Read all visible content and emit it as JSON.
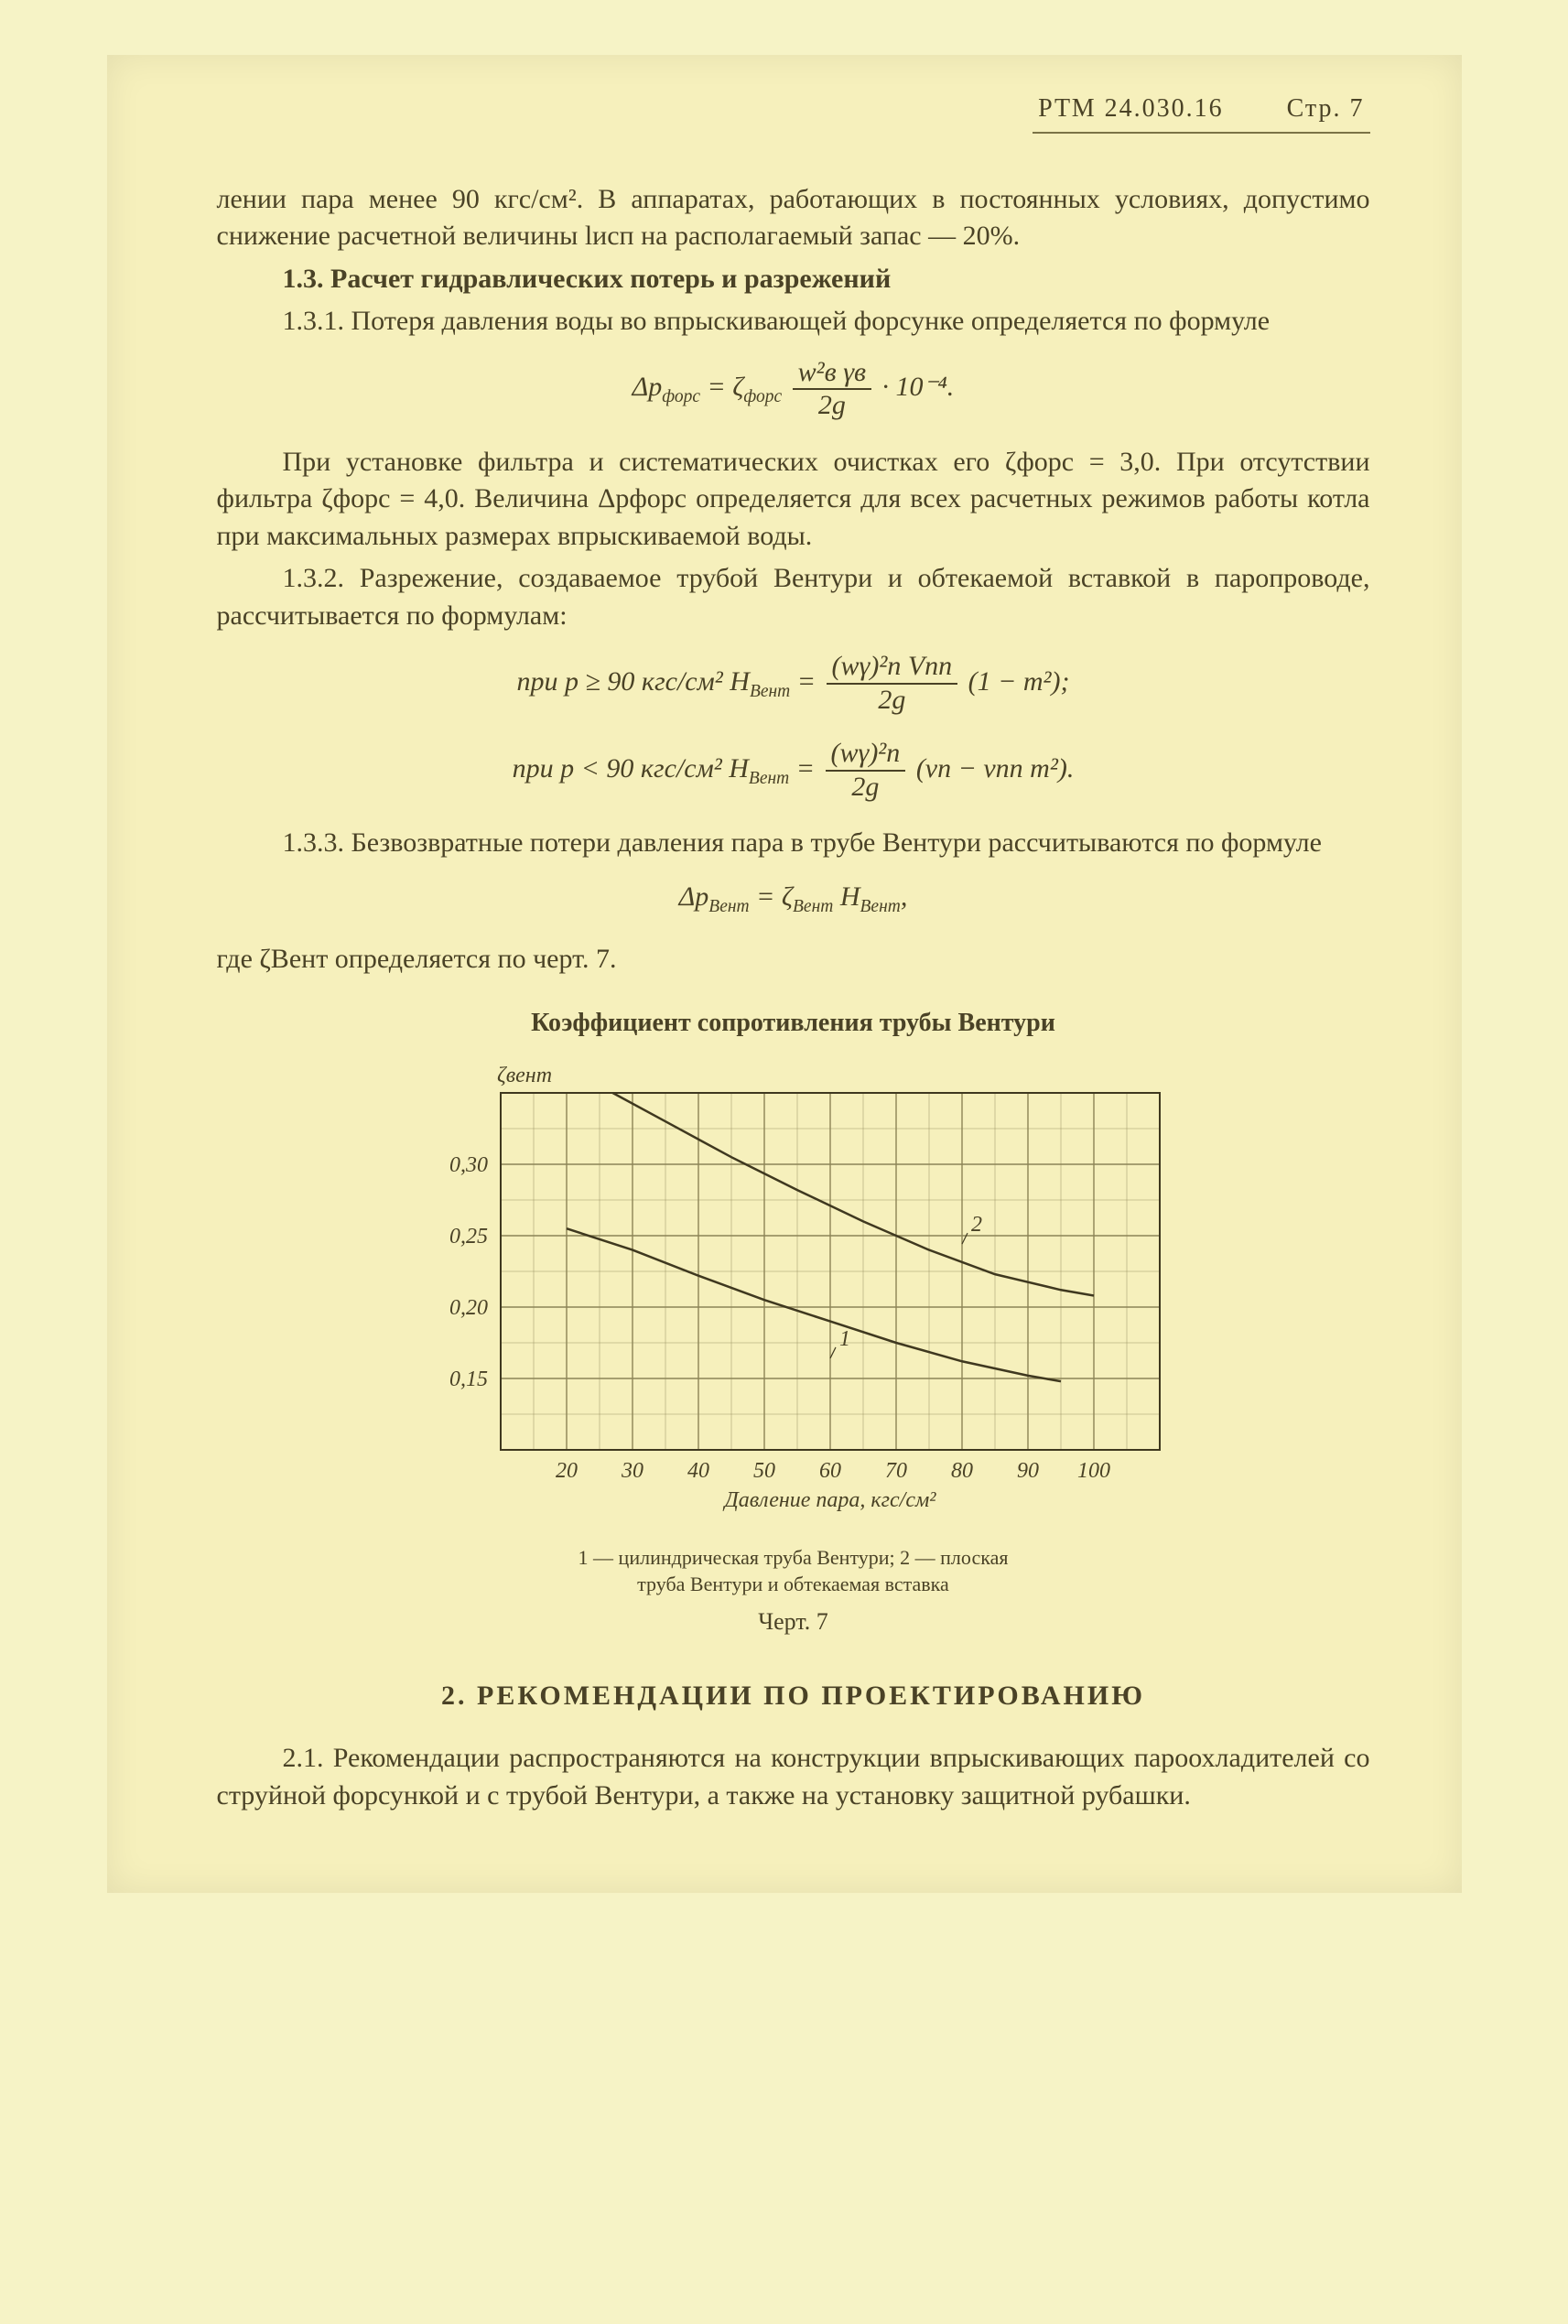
{
  "header": {
    "docnum": "РТМ 24.030.16",
    "page_label": "Стр. 7"
  },
  "para1": "лении пара менее 90 кгс/см². В аппаратах, работающих в постоянных условиях, допустимо снижение расчетной величины lисп на располагаемый запас — 20%.",
  "sec13_title": "1.3. Расчет гидравлических потерь и разрежений",
  "p131": "1.3.1. Потеря давления воды во впрыскивающей форсунке определяется по формуле",
  "formula1": {
    "lhs": "Δp",
    "lhs_sub": "форс",
    "eq": " = ζ",
    "zeta_sub": "форс",
    "frac_num": "w²в γв",
    "frac_den": "2g",
    "tail": " · 10⁻⁴."
  },
  "p131b": "При установке фильтра и систематических очистках его ζфорс = 3,0. При отсутствии фильтра ζфорс = 4,0. Величина Δpфорс определяется для всех расчетных режимов работы котла при максимальных размерах впрыскиваемой воды.",
  "p132": "1.3.2. Разрежение, создаваемое трубой Вентури и обтекаемой вставкой в паропроводе, рассчитывается по формулам:",
  "formula2a": {
    "prefix": "при  p ≥ 90 кгс/см²   H",
    "H_sub": "Вент",
    "eq": " = ",
    "frac_num": "(wγ)²п Vпп",
    "frac_den": "2g",
    "tail": " (1 − m²);"
  },
  "formula2b": {
    "prefix": "при  p < 90 кгс/см²   H",
    "H_sub": "Вент",
    "eq": " = ",
    "frac_num": "(wγ)²п",
    "frac_den": "2g",
    "tail": " (vп − vпп m²)."
  },
  "p133": "1.3.3. Безвозвратные потери давления пара в трубе Вентури рассчитываются по формуле",
  "formula3": "ΔpВент = ζВент HВент,",
  "p133b": "где ζВент определяется по черт. 7.",
  "chart": {
    "title": "Коэффициент сопротивления трубы Вентури",
    "type": "line",
    "x_label": "Давление пара, кгс/см²",
    "y_label": "ζвент",
    "xlim": [
      10,
      110
    ],
    "ylim": [
      0.1,
      0.35
    ],
    "xticks": [
      20,
      30,
      40,
      50,
      60,
      70,
      80,
      90,
      100
    ],
    "yticks": [
      0.15,
      0.2,
      0.25,
      0.3
    ],
    "ytick_labels": [
      "0,15",
      "0,20",
      "0,25",
      "0,30"
    ],
    "grid_step_x": 10,
    "minor_x_step": 5,
    "grid_step_y": 0.05,
    "minor_y_step": 0.025,
    "background_color": "#f6f0bc",
    "grid_color": "#8c8456",
    "line_color": "#3f381f",
    "line_width": 2.5,
    "axis_fontsize": 24,
    "series": [
      {
        "label": "1",
        "points": [
          [
            20,
            0.255
          ],
          [
            30,
            0.24
          ],
          [
            40,
            0.222
          ],
          [
            50,
            0.205
          ],
          [
            60,
            0.19
          ],
          [
            70,
            0.175
          ],
          [
            80,
            0.162
          ],
          [
            90,
            0.152
          ],
          [
            95,
            0.148
          ]
        ],
        "marker_x": 60,
        "marker_y": 0.168
      },
      {
        "label": "2",
        "points": [
          [
            27,
            0.35
          ],
          [
            35,
            0.33
          ],
          [
            45,
            0.305
          ],
          [
            55,
            0.282
          ],
          [
            65,
            0.26
          ],
          [
            75,
            0.24
          ],
          [
            85,
            0.223
          ],
          [
            95,
            0.212
          ],
          [
            100,
            0.208
          ]
        ],
        "marker_x": 80,
        "marker_y": 0.248
      }
    ],
    "caption_line1": "1 — цилиндрическая труба Вентури;  2 — плоская",
    "caption_line2": "труба Вентури и обтекаемая вставка",
    "fig_label": "Черт. 7"
  },
  "sec2_title": "2. РЕКОМЕНДАЦИИ ПО ПРОЕКТИРОВАНИЮ",
  "p21": "2.1. Рекомендации распространяются на конструкции впрыскивающих пароохладителей со струйной форсункой и с трубой Вентури, а также на установку защитной рубашки."
}
